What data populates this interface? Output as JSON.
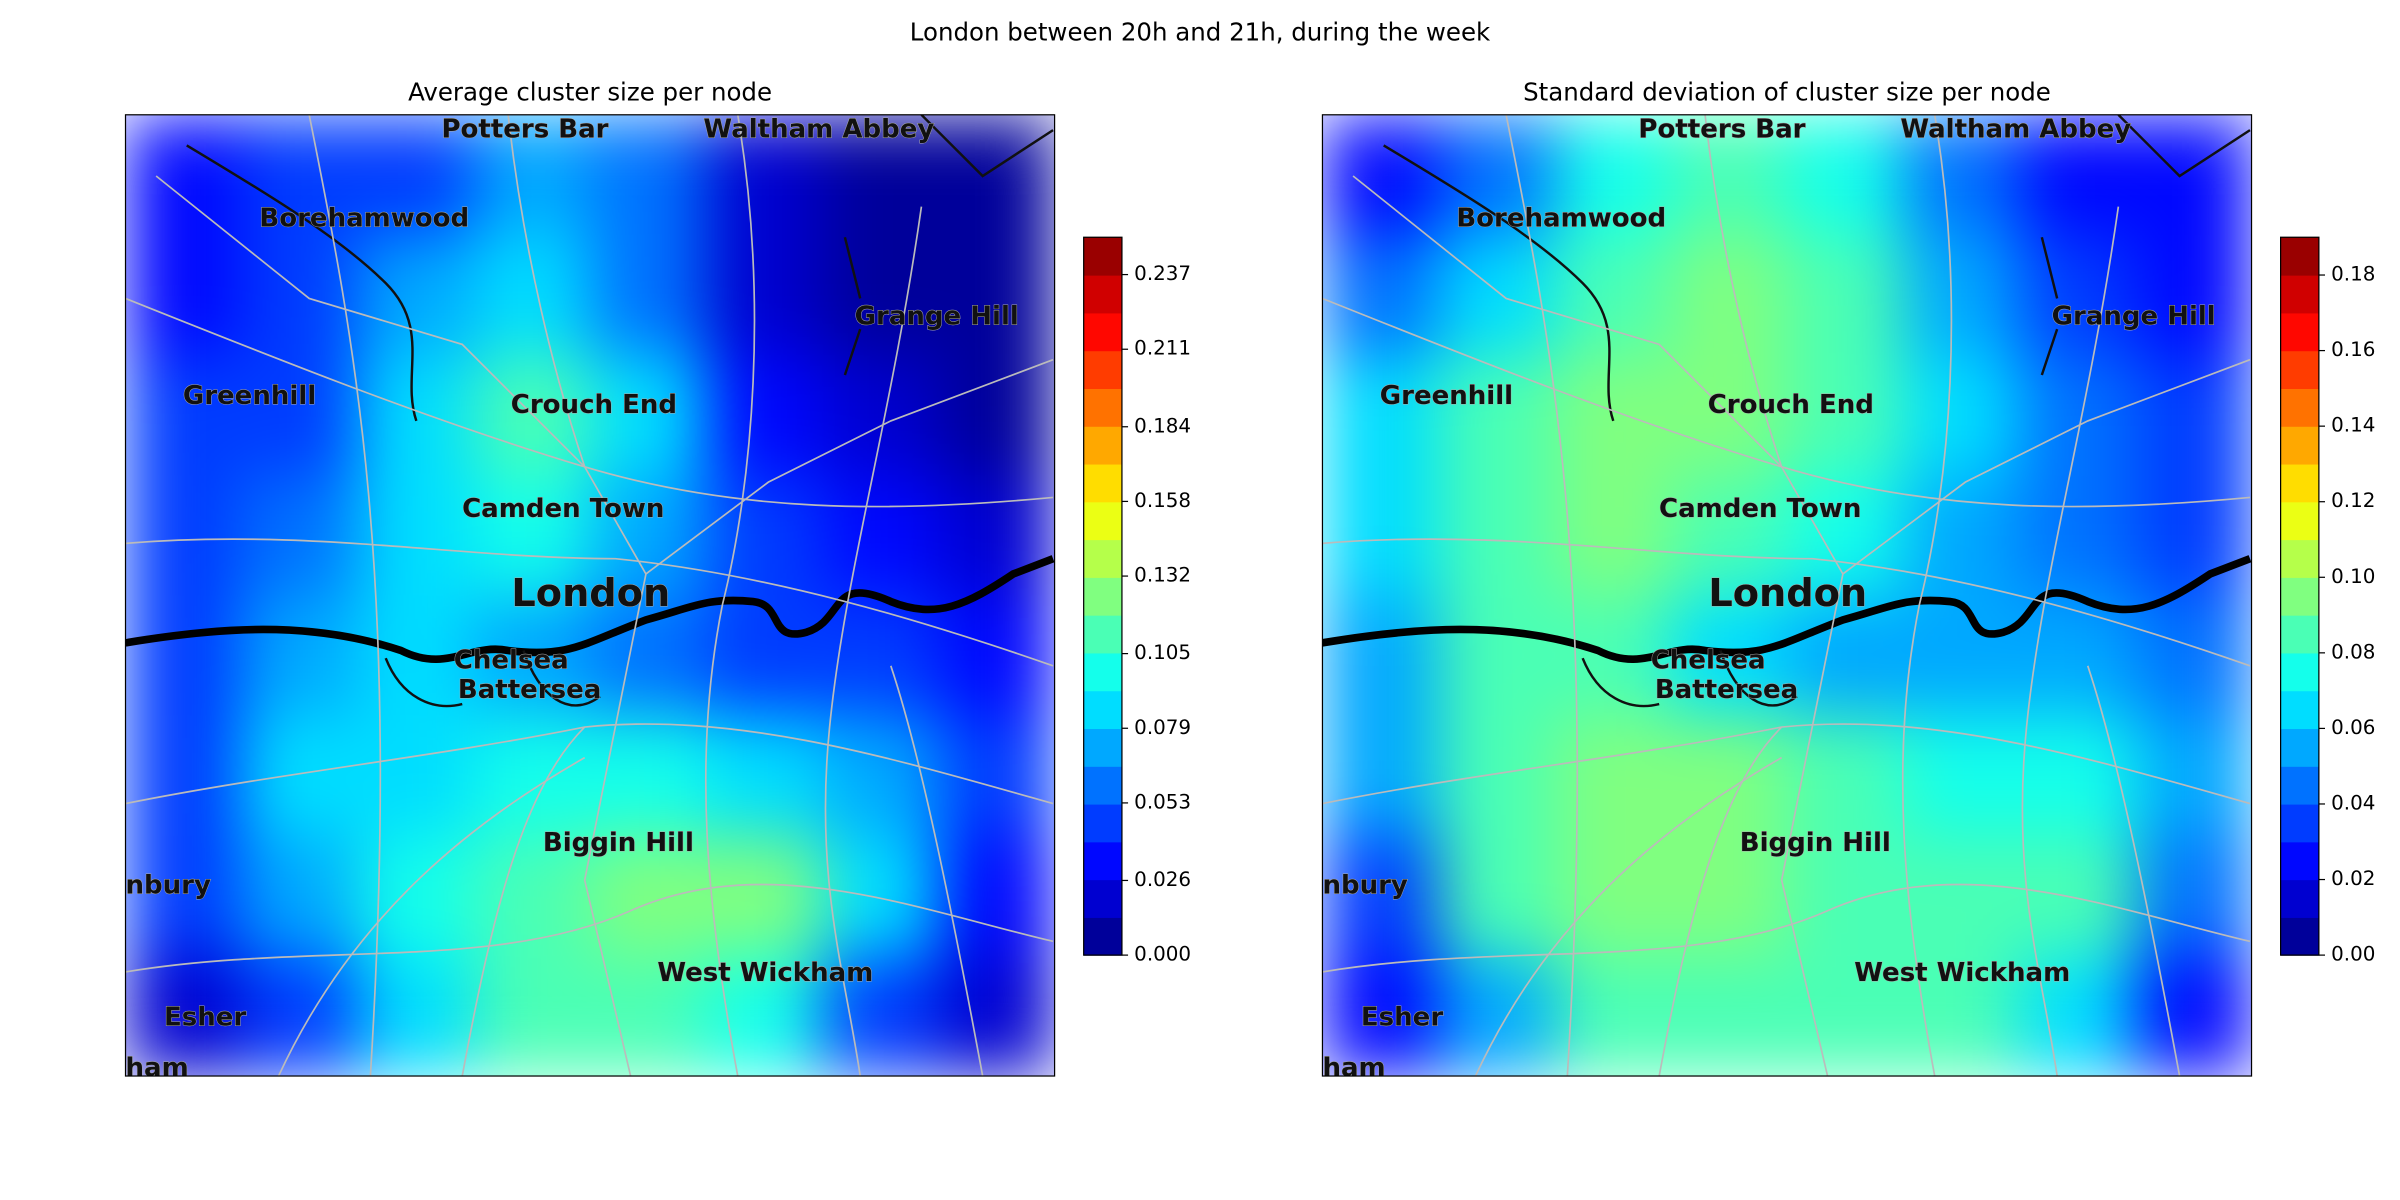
{
  "title": "London between 20h and 21h, during the week",
  "chart_data": [
    {
      "type": "heatmap",
      "title": "Average cluster size per node",
      "places": [
        "Potters Bar",
        "Waltham Abbey",
        "Borehamwood",
        "Grange Hill",
        "Greenhill",
        "Crouch End",
        "Camden Town",
        "London",
        "Chelsea",
        "Battersea",
        "Biggin Hill",
        "West Wickham",
        "Esher",
        "nbury",
        "ham"
      ],
      "grid": [
        [
          0.03,
          0.04,
          0.05,
          0.07,
          0.06,
          0.02,
          0.01,
          0.01
        ],
        [
          0.03,
          0.05,
          0.07,
          0.09,
          0.06,
          0.02,
          0.01,
          0.01
        ],
        [
          0.04,
          0.05,
          0.08,
          0.11,
          0.08,
          0.03,
          0.02,
          0.01
        ],
        [
          0.04,
          0.06,
          0.09,
          0.1,
          0.07,
          0.04,
          0.03,
          0.02
        ],
        [
          0.05,
          0.07,
          0.08,
          0.07,
          0.06,
          0.05,
          0.04,
          0.03
        ],
        [
          0.05,
          0.08,
          0.09,
          0.1,
          0.1,
          0.09,
          0.07,
          0.04
        ],
        [
          0.04,
          0.07,
          0.1,
          0.11,
          0.12,
          0.13,
          0.08,
          0.03
        ],
        [
          0.02,
          0.04,
          0.09,
          0.11,
          0.11,
          0.1,
          0.05,
          0.02
        ]
      ],
      "clim": [
        0,
        0.25
      ],
      "levels": 19,
      "cticks": [
        {
          "value": 0,
          "label": "0.000"
        },
        {
          "value": 0.026,
          "label": "0.026"
        },
        {
          "value": 0.053,
          "label": "0.053"
        },
        {
          "value": 0.079,
          "label": "0.079"
        },
        {
          "value": 0.105,
          "label": "0.105"
        },
        {
          "value": 0.132,
          "label": "0.132"
        },
        {
          "value": 0.158,
          "label": "0.158"
        },
        {
          "value": 0.184,
          "label": "0.184"
        },
        {
          "value": 0.211,
          "label": "0.211"
        },
        {
          "value": 0.237,
          "label": "0.237"
        }
      ]
    },
    {
      "type": "heatmap",
      "title": "Standard deviation of cluster size per node",
      "places": [
        "Potters Bar",
        "Waltham Abbey",
        "Borehamwood",
        "Grange Hill",
        "Greenhill",
        "Crouch End",
        "Camden Town",
        "London",
        "Chelsea",
        "Battersea",
        "Biggin Hill",
        "West Wickham",
        "Esher",
        "nbury",
        "ham"
      ],
      "grid": [
        [
          0.02,
          0.04,
          0.07,
          0.08,
          0.07,
          0.04,
          0.02,
          0.02
        ],
        [
          0.04,
          0.06,
          0.08,
          0.09,
          0.08,
          0.05,
          0.03,
          0.02
        ],
        [
          0.06,
          0.08,
          0.09,
          0.09,
          0.08,
          0.06,
          0.04,
          0.03
        ],
        [
          0.06,
          0.08,
          0.09,
          0.08,
          0.07,
          0.05,
          0.04,
          0.03
        ],
        [
          0.05,
          0.08,
          0.08,
          0.06,
          0.05,
          0.05,
          0.05,
          0.04
        ],
        [
          0.05,
          0.08,
          0.09,
          0.09,
          0.08,
          0.07,
          0.07,
          0.05
        ],
        [
          0.03,
          0.08,
          0.09,
          0.09,
          0.08,
          0.08,
          0.08,
          0.04
        ],
        [
          0.02,
          0.05,
          0.08,
          0.08,
          0.08,
          0.08,
          0.06,
          0.02
        ]
      ],
      "clim": [
        0,
        0.19
      ],
      "levels": 19,
      "cticks": [
        {
          "value": 0,
          "label": "0.00"
        },
        {
          "value": 0.02,
          "label": "0.02"
        },
        {
          "value": 0.04,
          "label": "0.04"
        },
        {
          "value": 0.06,
          "label": "0.06"
        },
        {
          "value": 0.08,
          "label": "0.08"
        },
        {
          "value": 0.1,
          "label": "0.10"
        },
        {
          "value": 0.12,
          "label": "0.12"
        },
        {
          "value": 0.14,
          "label": "0.14"
        },
        {
          "value": 0.16,
          "label": "0.16"
        },
        {
          "value": 0.18,
          "label": "0.18"
        }
      ]
    }
  ]
}
